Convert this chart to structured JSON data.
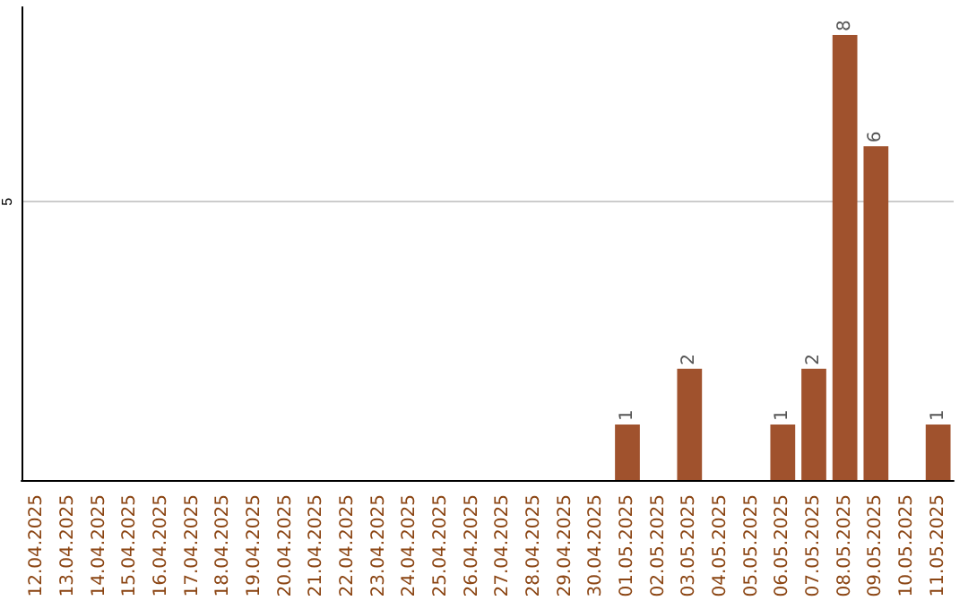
{
  "chart_data": {
    "type": "bar",
    "categories": [
      "12.04.2025",
      "13.04.2025",
      "14.04.2025",
      "15.04.2025",
      "16.04.2025",
      "17.04.2025",
      "18.04.2025",
      "19.04.2025",
      "20.04.2025",
      "21.04.2025",
      "22.04.2025",
      "23.04.2025",
      "24.04.2025",
      "25.04.2025",
      "26.04.2025",
      "27.04.2025",
      "28.04.2025",
      "29.04.2025",
      "30.04.2025",
      "01.05.2025",
      "02.05.2025",
      "03.05.2025",
      "04.05.2025",
      "05.05.2025",
      "06.05.2025",
      "07.05.2025",
      "08.05.2025",
      "09.05.2025",
      "10.05.2025",
      "11.05.2025"
    ],
    "values": [
      null,
      null,
      null,
      null,
      null,
      null,
      null,
      null,
      null,
      null,
      null,
      null,
      null,
      null,
      null,
      null,
      null,
      null,
      null,
      1,
      null,
      2,
      null,
      null,
      1,
      2,
      8,
      6,
      null,
      1
    ],
    "data_labels": true,
    "color": "#a0522d",
    "ylim": [
      0,
      8.5
    ],
    "yticks": [
      5
    ],
    "grid": "y"
  }
}
